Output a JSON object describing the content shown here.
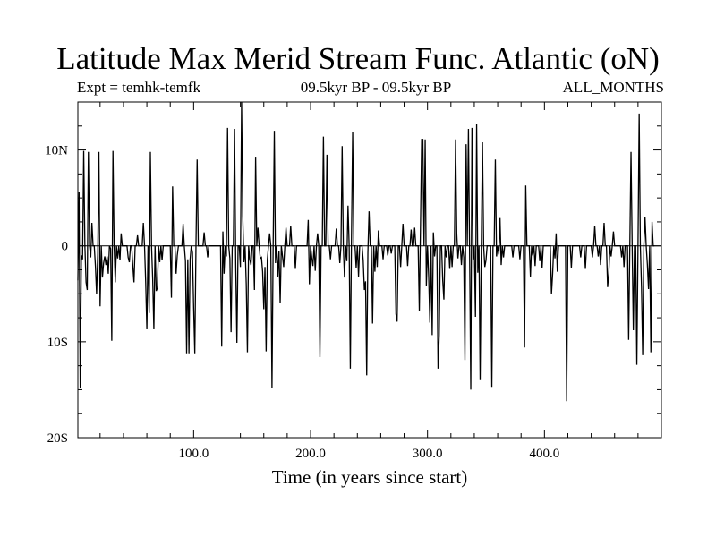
{
  "title": "Latitude Max Merid Stream Func. Atlantic (oN)",
  "expt_label": "Expt = temhk-temfk",
  "period_label": "09.5kyr BP - 09.5kyr BP",
  "months_label": "ALL_MONTHS",
  "chart_data": {
    "type": "line",
    "title": "Latitude Max Merid Stream Func. Atlantic (oN)",
    "xlabel": "Time (in years since start)",
    "ylabel": "",
    "xlim": [
      1,
      500
    ],
    "ylim": [
      -20,
      15
    ],
    "x_ticks": [
      100,
      200,
      300,
      400
    ],
    "x_tick_labels": [
      "100.0",
      "200.0",
      "300.0",
      "400.0"
    ],
    "y_ticks": [
      10,
      0,
      -10,
      -20
    ],
    "y_tick_labels": [
      "10N",
      "0",
      "10S",
      "20S"
    ],
    "series": [
      {
        "name": "temhk-temfk",
        "x_start": 1,
        "x_step": 1,
        "values": [
          -3.6,
          5.6,
          -14.8,
          -1.0,
          -1.4,
          9.9,
          0.0,
          -3.8,
          -4.6,
          9.8,
          0.0,
          -1.2,
          2.4,
          0.0,
          0.0,
          -2.1,
          -5.0,
          -0.8,
          9.8,
          -6.3,
          0.0,
          -3.3,
          -1.8,
          -1.1,
          -2.0,
          -1.1,
          -2.9,
          0.0,
          -0.3,
          -9.9,
          9.9,
          0.0,
          -3.8,
          0.0,
          -1.3,
          0.0,
          -1.5,
          1.3,
          0.0,
          0.0,
          0.0,
          0.0,
          0.0,
          -1.2,
          -1.7,
          0.0,
          0.0,
          -2.1,
          -3.8,
          0.0,
          0.0,
          1.1,
          0.0,
          0.0,
          0.0,
          0.0,
          2.4,
          0.0,
          -3.8,
          -8.7,
          0.0,
          -7.0,
          9.8,
          0.0,
          -3.5,
          -8.7,
          0.0,
          -4.7,
          -4.4,
          0.0,
          -1.7,
          0.0,
          -1.5,
          0.0,
          0.0,
          0.0,
          0.0,
          0.0,
          0.0,
          0.0,
          -5.4,
          6.2,
          0.0,
          0.0,
          -2.9,
          -1.0,
          0.0,
          0.0,
          0.0,
          0.0,
          2.3,
          0.0,
          -1.6,
          -11.2,
          -1.4,
          -11.2,
          -1.4,
          0.0,
          -0.7,
          -6.4,
          -11.2,
          0.0,
          9.0,
          0.0,
          0.0,
          0.0,
          0.0,
          0.0,
          1.4,
          0.0,
          0.0,
          -1.2,
          0.0,
          0.0,
          0.0,
          0.0,
          0.0,
          0.0,
          0.0,
          0.0,
          0.0,
          0.0,
          0.0,
          -10.5,
          1.5,
          -2.9,
          0.0,
          -1.1,
          12.3,
          0.0,
          -1.3,
          -9.0,
          0.0,
          0.0,
          12.2,
          -1.9,
          -10.1,
          0.0,
          0.0,
          -2.2,
          15.1,
          3.1,
          -1.7,
          0.0,
          -4.0,
          -11.1,
          0.0,
          -1.4,
          -2.0,
          0.0,
          0.0,
          -4.6,
          9.3,
          0.0,
          1.9,
          0.0,
          -1.3,
          -1.2,
          -2.7,
          -6.6,
          -2.2,
          -11.0,
          -1.5,
          0.0,
          1.3,
          0.0,
          -14.8,
          0.0,
          12.0,
          -1.8,
          0.0,
          -3.2,
          -0.5,
          -6.0,
          0.0,
          -1.1,
          -2.2,
          0.0,
          1.9,
          0.0,
          0.0,
          0.0,
          2.1,
          0.0,
          0.0,
          0.0,
          -2.4,
          0.0,
          0.0,
          0.0,
          0.0,
          0.0,
          0.0,
          0.0,
          0.0,
          0.0,
          0.0,
          2.7,
          -4.0,
          0.0,
          -1.2,
          -2.1,
          0.0,
          -2.6,
          0.0,
          1.3,
          0.0,
          -11.6,
          0.0,
          0.0,
          11.4,
          0.0,
          0.0,
          9.5,
          0.0,
          0.0,
          -1.4,
          0.0,
          0.0,
          0.0,
          0.0,
          1.8,
          0.0,
          0.0,
          -1.8,
          0.0,
          10.4,
          0.0,
          -3.3,
          0.0,
          -1.6,
          4.2,
          0.0,
          -12.8,
          1.1,
          11.9,
          0.0,
          0.0,
          -2.3,
          0.0,
          -3.2,
          0.0,
          0.0,
          0.0,
          -1.5,
          -4.6,
          -3.7,
          -13.5,
          -0.7,
          3.6,
          0.0,
          0.0,
          -8.1,
          0.0,
          -2.7,
          0.0,
          -2.2,
          1.6,
          0.0,
          0.0,
          0.0,
          -1.4,
          0.0,
          0.0,
          0.0,
          -1.0,
          0.0,
          0.0,
          -0.8,
          0.0,
          0.0,
          0.0,
          -7.1,
          -7.9,
          0.0,
          0.0,
          -2.2,
          0.0,
          2.3,
          0.0,
          0.0,
          0.0,
          -2.1,
          0.0,
          0.0,
          1.7,
          0.0,
          0.0,
          1.9,
          0.0,
          0.0,
          0.0,
          -6.8,
          2.2,
          11.1,
          11.1,
          0.0,
          11.1,
          -4.2,
          0.0,
          -3.2,
          -8.0,
          0.0,
          -9.3,
          1.4,
          -1.1,
          0.0,
          0.0,
          -12.8,
          -9.3,
          0.0,
          0.0,
          -3.6,
          -5.6,
          0.0,
          -1.2,
          0.0,
          0.0,
          -2.4,
          0.0,
          -2.2,
          0.0,
          0.0,
          11.1,
          1.3,
          -1.3,
          0.0,
          0.0,
          -2.0,
          0.0,
          -1.2,
          -11.9,
          10.6,
          0.0,
          12.2,
          -0.9,
          -15.0,
          12.3,
          -1.5,
          0.0,
          -7.4,
          12.7,
          -2.8,
          0.0,
          -14.0,
          0.0,
          10.8,
          0.0,
          -2.2,
          -1.5,
          0.0,
          0.0,
          0.0,
          0.0,
          -14.7,
          0.0,
          0.0,
          9.0,
          -1.1,
          0.0,
          -0.9,
          2.9,
          -2.0,
          0.0,
          -1.2,
          0.0,
          0.0,
          0.0,
          0.0,
          0.0,
          0.0,
          0.0,
          -1.2,
          0.0,
          0.0,
          0.0,
          0.0,
          0.0,
          -1.4,
          0.0,
          0.0,
          0.0,
          -10.6,
          6.3,
          0.0,
          0.0,
          0.0,
          -3.2,
          0.0,
          -1.0,
          0.0,
          -2.1,
          0.0,
          0.0,
          0.0,
          -1.6,
          0.0,
          -2.3,
          0.0,
          0.0,
          0.0,
          0.0,
          0.0,
          0.0,
          0.0,
          -5.0,
          -2.9,
          0.0,
          -1.3,
          1.3,
          -2.7,
          0.0,
          0.0,
          0.0,
          0.0,
          0.0,
          0.0,
          0.0,
          -16.2,
          0.0,
          0.0,
          0.0,
          -2.3,
          0.0,
          0.0,
          0.0,
          0.0,
          0.0,
          0.0,
          0.0,
          -1.2,
          0.0,
          0.0,
          0.0,
          -2.4,
          0.0,
          0.0,
          0.0,
          0.0,
          0.0,
          -1.2,
          0.0,
          2.1,
          0.0,
          0.0,
          -1.1,
          0.0,
          -2.0,
          0.0,
          0.0,
          2.4,
          0.0,
          0.0,
          -4.3,
          -2.9,
          0.0,
          -1.1,
          0.0,
          1.5,
          0.0,
          0.0,
          0.0,
          0.0,
          0.0,
          0.0,
          -1.2,
          0.0,
          -2.2,
          0.0,
          0.0,
          0.0,
          -9.8,
          0.0,
          9.8,
          0.0,
          -8.8,
          0.0,
          0.0,
          -12.4,
          0.0,
          13.8,
          0.0,
          -4.3,
          -11.4,
          0.0,
          3.0,
          0.0,
          -1.9,
          -4.5,
          0.0,
          -11.1,
          2.5,
          0.0,
          0.0
        ]
      }
    ]
  }
}
